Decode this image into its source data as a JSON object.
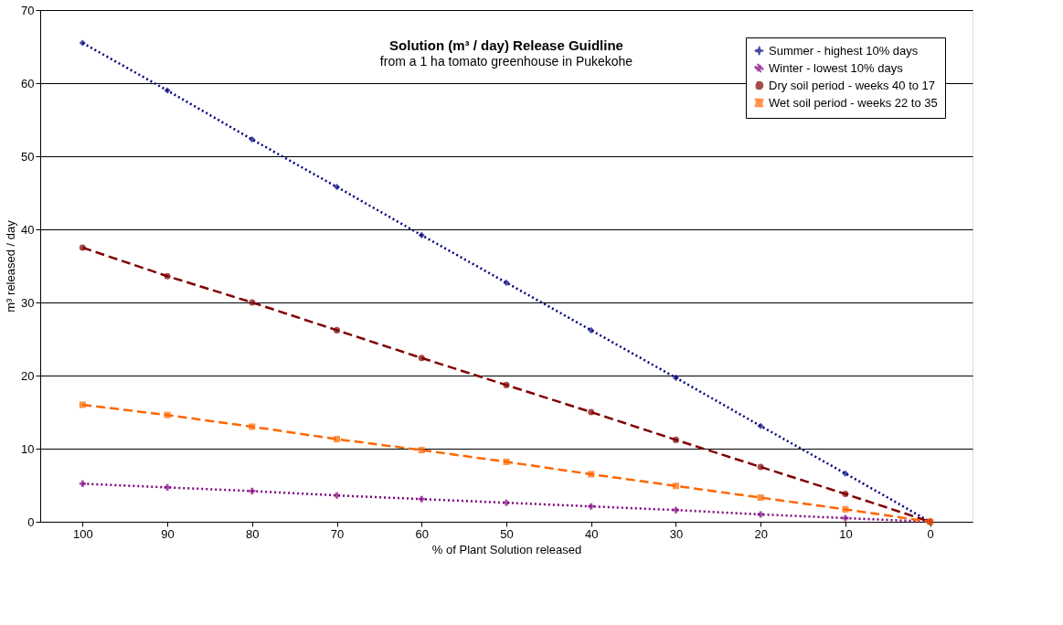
{
  "chart_data": {
    "type": "line",
    "title": "Solution (m³ / day)  Release Guidline",
    "subtitle": "from a 1 ha tomato greenhouse in Pukekohe",
    "xlabel": "% of Plant Solution released",
    "ylabel": "m³ released / day",
    "categories": [
      "100",
      "90",
      "80",
      "70",
      "60",
      "50",
      "40",
      "30",
      "20",
      "10",
      "0"
    ],
    "ylim": [
      0,
      70
    ],
    "yticks": [
      0,
      10,
      20,
      30,
      40,
      50,
      60,
      70
    ],
    "grid": "y",
    "legend": "top right",
    "series": [
      {
        "name": "Summer - highest 10% days",
        "color": "#000080",
        "marker": "diamond",
        "line_style": "dotted",
        "values": [
          65.5,
          59,
          52.3,
          45.8,
          39.2,
          32.7,
          26.2,
          19.7,
          13.1,
          6.6,
          0
        ]
      },
      {
        "name": "Winter - lowest 10% days",
        "color": "#800080",
        "marker": "cross",
        "line_style": "dotted",
        "values": [
          5.2,
          4.7,
          4.2,
          3.6,
          3.1,
          2.6,
          2.1,
          1.6,
          1.0,
          0.5,
          0
        ]
      },
      {
        "name": "Dry soil period - weeks 40 to 17",
        "color": "#800000",
        "marker": "circle",
        "line_style": "dashed",
        "values": [
          37.5,
          33.6,
          30,
          26.2,
          22.4,
          18.7,
          15,
          11.2,
          7.5,
          3.8,
          0
        ]
      },
      {
        "name": "Wet soil period - weeks 22 to 35",
        "color": "#ff6600",
        "marker": "square",
        "line_style": "dashed",
        "values": [
          16,
          14.6,
          13,
          11.3,
          9.8,
          8.2,
          6.5,
          4.9,
          3.3,
          1.7,
          0
        ]
      }
    ]
  }
}
